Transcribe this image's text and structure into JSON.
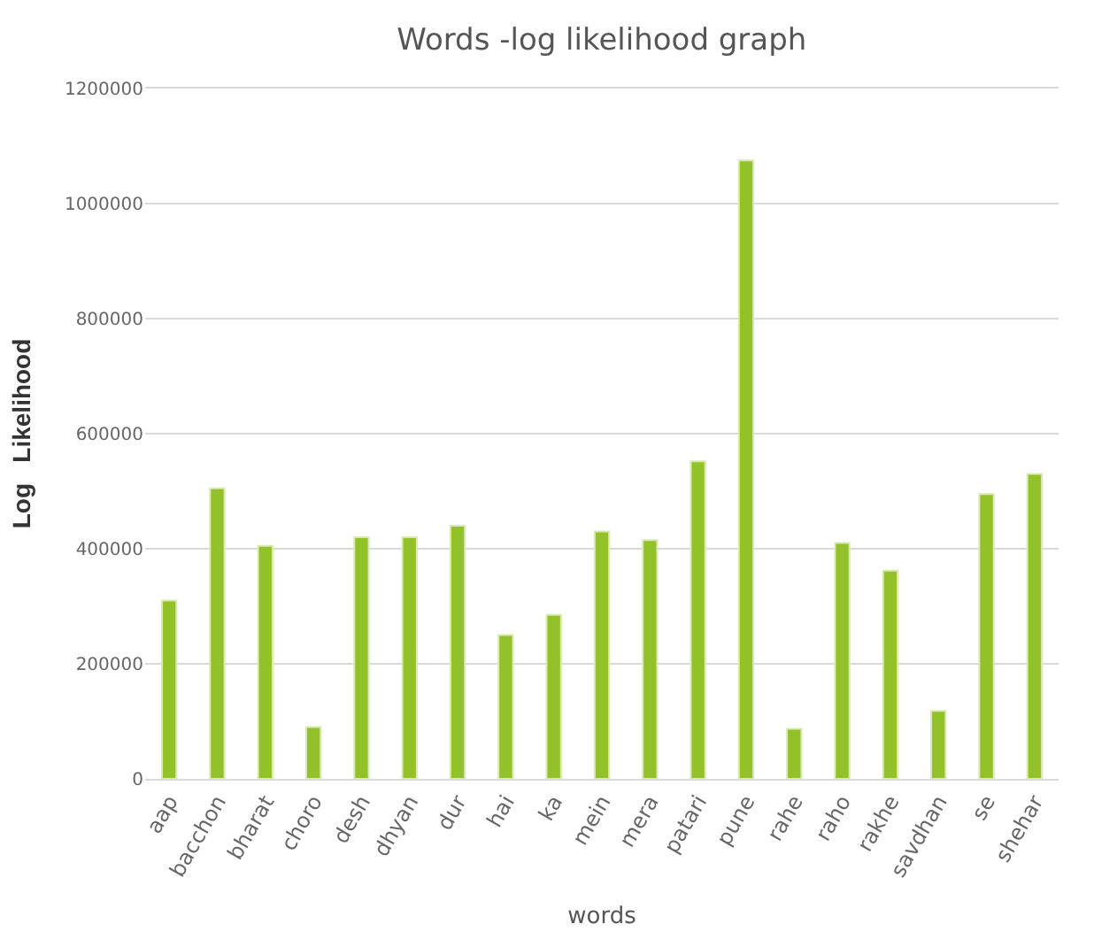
{
  "chart_data": {
    "type": "bar",
    "title": "Words -log likelihood graph",
    "xlabel": "words",
    "ylabel": "Log   Likelihood",
    "categories": [
      "aap",
      "bacchon",
      "bharat",
      "choro",
      "desh",
      "dhyan",
      "dur",
      "hai",
      "ka",
      "mein",
      "mera",
      "patari",
      "pune",
      "rahe",
      "raho",
      "rakhe",
      "savdhan",
      "se",
      "shehar"
    ],
    "values": [
      310000,
      505000,
      405000,
      90000,
      420000,
      420000,
      440000,
      250000,
      285000,
      430000,
      415000,
      552000,
      1075000,
      87000,
      410000,
      362000,
      118000,
      495000,
      530000
    ],
    "color": "#93c12a",
    "ylim": [
      0,
      1200000
    ],
    "yticks": [
      0,
      200000,
      400000,
      600000,
      800000,
      1000000,
      1200000
    ],
    "grid": "y"
  }
}
